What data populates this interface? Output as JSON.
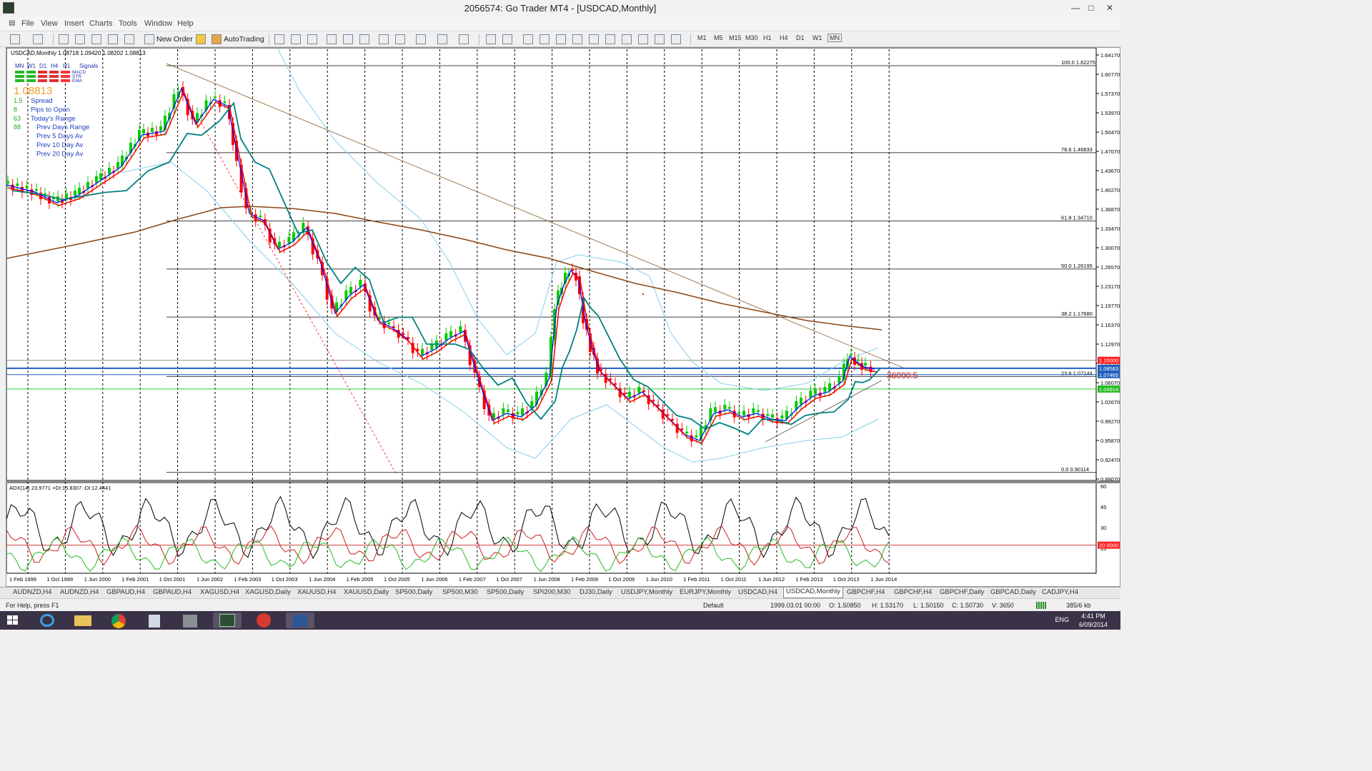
{
  "window": {
    "title": "2056574: Go Trader MT4 - [USDCAD,Monthly]"
  },
  "menu": [
    "File",
    "View",
    "Insert",
    "Charts",
    "Tools",
    "Window",
    "Help"
  ],
  "toolbar": {
    "new_order": "New Order",
    "autotrading": "AutoTrading",
    "timeframes": [
      "M1",
      "M5",
      "M15",
      "M30",
      "H1",
      "H4",
      "D1",
      "W1",
      "MN"
    ]
  },
  "chart": {
    "header": "USDCAD,Monthly  1.08718 1.09420 1.08202 1.08813",
    "panel_tfs": [
      "MN",
      "W1",
      "D1",
      "H4",
      "H1",
      "Signals"
    ],
    "panel_labels": [
      "MACD",
      "STR",
      "EMA"
    ],
    "price_big": "1.08813",
    "info_rows": [
      {
        "num": "1.5",
        "label": "Spread"
      },
      {
        "num": "8",
        "label": "Pips to Open"
      },
      {
        "num": "63",
        "label": "Today's Range"
      },
      {
        "num": "88",
        "label": "Prev Days Range"
      },
      {
        "num": "",
        "label": "Prev 5 Days Av"
      },
      {
        "num": "",
        "label": "Prev 10 Day Av"
      },
      {
        "num": "",
        "label": "Prev 20 Day Av"
      }
    ],
    "price_axis": [
      "1.64170",
      "1.60770",
      "1.57370",
      "1.53970",
      "1.50470",
      "1.47070",
      "1.43670",
      "1.40270",
      "1.36870",
      "1.33470",
      "1.30070",
      "1.26570",
      "1.23170",
      "1.19770",
      "1.16370",
      "1.12970",
      "1.09570",
      "1.06070",
      "1.02670",
      "0.99270",
      "0.95870",
      "0.92470",
      "0.89070"
    ],
    "price_tags": [
      "1.10000",
      "1.08583",
      "1.07465",
      "1.04914"
    ],
    "fib_labels": [
      "100.0  1.62275",
      "78.6  1.46833",
      "61.8  1.34710",
      "50.0  1.26195",
      "38.2  1.17680",
      "23.6  1.07144",
      "0.0  0.90114"
    ],
    "time_axis": [
      "1 Feb 1999",
      "1 Oct 1999",
      "1 Jun 2000",
      "1 Feb 2001",
      "1 Oct 2001",
      "1 Jun 2002",
      "1 Feb 2003",
      "1 Oct 2003",
      "1 Jun 2004",
      "1 Feb 2005",
      "1 Oct 2005",
      "1 Jun 2006",
      "1 Feb 2007",
      "1 Oct 2007",
      "1 Jun 2008",
      "1 Feb 2009",
      "1 Oct 2009",
      "1 Jun 2010",
      "1 Feb 2011",
      "1 Oct 2011",
      "1 Jun 2012",
      "1 Feb 2013",
      "1 Oct 2013",
      "1 Jun 2014"
    ],
    "countdown": "36000:5",
    "adx_header": "ADX(14) 23.9771 +DI:15.8307 -DI:12.4441",
    "adx_axis": [
      "60",
      "45",
      "30",
      "15"
    ],
    "adx_tag": "20.0000"
  },
  "tabs": [
    "AUDNZD,H4",
    "AUDNZD,H4",
    "GBPAUD,H4",
    "GBPAUD,H4",
    "XAGUSD,H4",
    "XAGUSD,Daily",
    "XAUUSD,H4",
    "XAUUSD,Daily",
    "SP500,Daily",
    "SP500,M30",
    "SP500,Daily",
    "SPI200,M30",
    "DJ30,Daily",
    "USDJPY,Monthly",
    "EURJPY,Monthly",
    "USDCAD,H4",
    "USDCAD,Monthly",
    "GBPCHF,H4",
    "GBPCHF,H4",
    "GBPCHF,Daily",
    "GBPCAD,Daily",
    "CADJPY,H4"
  ],
  "status": {
    "help": "For Help, press F1",
    "profile": "Default",
    "time": "1999.03.01 00:00",
    "open": "O: 1.50850",
    "high": "H: 1.53170",
    "low": "L: 1.50150",
    "close": "C: 1.50730",
    "volume": "V: 3650",
    "traffic": "385/6 kb"
  },
  "taskbar": {
    "lang": "ENG",
    "time": "4:41 PM",
    "date": "6/09/2014"
  },
  "colors": {
    "fib": "#000000",
    "ema_fast": "#0000ff",
    "ema_mid": "#ff0000",
    "ema_slow": "#008080",
    "ma_long": "#8b4513",
    "bands": "#87ceeb",
    "bull": "#00cc00",
    "bear": "#ff0000"
  }
}
